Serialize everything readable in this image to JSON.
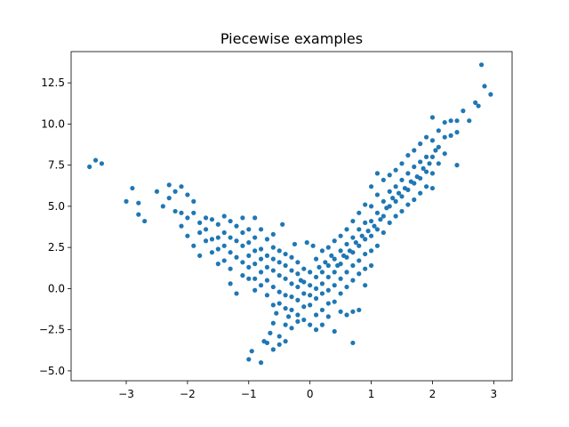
{
  "chart_data": {
    "type": "scatter",
    "title": "Piecewise examples",
    "xlabel": "",
    "ylabel": "",
    "xlim": [
      -3.9,
      3.3
    ],
    "ylim": [
      -5.6,
      14.4
    ],
    "x_ticks": [
      -3,
      -2,
      -1,
      0,
      1,
      2,
      3
    ],
    "x_tick_labels": [
      "−3",
      "−2",
      "−1",
      "0",
      "1",
      "2",
      "3"
    ],
    "y_ticks": [
      -5.0,
      -2.5,
      0.0,
      2.5,
      5.0,
      7.5,
      10.0,
      12.5
    ],
    "y_tick_labels": [
      "−5.0",
      "−2.5",
      "0.0",
      "2.5",
      "5.0",
      "7.5",
      "10.0",
      "12.5"
    ],
    "grid": false,
    "series": [
      {
        "color": "#1f77b4",
        "marker": "circle",
        "points": [
          [
            -3.6,
            7.4
          ],
          [
            -3.5,
            7.8
          ],
          [
            -3.4,
            7.6
          ],
          [
            -3.0,
            5.3
          ],
          [
            -2.9,
            6.1
          ],
          [
            -2.8,
            5.2
          ],
          [
            -2.8,
            4.5
          ],
          [
            -2.7,
            4.1
          ],
          [
            -2.5,
            5.9
          ],
          [
            -2.4,
            5.0
          ],
          [
            -2.3,
            6.3
          ],
          [
            -2.3,
            5.5
          ],
          [
            -2.2,
            4.7
          ],
          [
            -2.2,
            5.9
          ],
          [
            -2.1,
            6.2
          ],
          [
            -2.1,
            4.6
          ],
          [
            -2.1,
            3.8
          ],
          [
            -2.0,
            5.7
          ],
          [
            -2.0,
            4.3
          ],
          [
            -2.0,
            3.2
          ],
          [
            -1.9,
            5.3
          ],
          [
            -1.9,
            4.6
          ],
          [
            -1.9,
            2.6
          ],
          [
            -1.8,
            4.0
          ],
          [
            -1.8,
            3.4
          ],
          [
            -1.8,
            2.0
          ],
          [
            -1.7,
            4.3
          ],
          [
            -1.7,
            3.6
          ],
          [
            -1.7,
            2.9
          ],
          [
            -1.6,
            4.2
          ],
          [
            -1.6,
            3.0
          ],
          [
            -1.6,
            2.2
          ],
          [
            -1.5,
            3.9
          ],
          [
            -1.5,
            3.1
          ],
          [
            -1.5,
            2.4
          ],
          [
            -1.5,
            1.5
          ],
          [
            -1.4,
            4.4
          ],
          [
            -1.4,
            3.4
          ],
          [
            -1.4,
            2.6
          ],
          [
            -1.4,
            1.7
          ],
          [
            -1.3,
            4.1
          ],
          [
            -1.3,
            3.1
          ],
          [
            -1.3,
            2.2
          ],
          [
            -1.3,
            1.2
          ],
          [
            -1.3,
            0.3
          ],
          [
            -1.2,
            3.8
          ],
          [
            -1.2,
            2.9
          ],
          [
            -1.2,
            1.9
          ],
          [
            -1.2,
            -0.3
          ],
          [
            -1.1,
            4.3
          ],
          [
            -1.1,
            3.4
          ],
          [
            -1.1,
            2.6
          ],
          [
            -1.1,
            1.6
          ],
          [
            -1.1,
            0.8
          ],
          [
            -1.0,
            3.6
          ],
          [
            -1.0,
            2.8
          ],
          [
            -1.0,
            2.0
          ],
          [
            -1.0,
            1.3
          ],
          [
            -1.0,
            0.6
          ],
          [
            -1.0,
            -4.3
          ],
          [
            -0.95,
            -3.8
          ],
          [
            -0.9,
            4.3
          ],
          [
            -0.9,
            3.1
          ],
          [
            -0.9,
            2.3
          ],
          [
            -0.9,
            1.5
          ],
          [
            -0.9,
            0.6
          ],
          [
            -0.9,
            -0.1
          ],
          [
            -0.8,
            3.6
          ],
          [
            -0.8,
            2.4
          ],
          [
            -0.8,
            1.8
          ],
          [
            -0.8,
            1.0
          ],
          [
            -0.8,
            0.2
          ],
          [
            -0.8,
            -4.5
          ],
          [
            -0.75,
            -3.2
          ],
          [
            -0.7,
            3.0
          ],
          [
            -0.7,
            2.0
          ],
          [
            -0.7,
            1.3
          ],
          [
            -0.7,
            0.5
          ],
          [
            -0.7,
            -0.4
          ],
          [
            -0.7,
            -3.3
          ],
          [
            -0.65,
            -2.7
          ],
          [
            -0.6,
            3.3
          ],
          [
            -0.6,
            2.5
          ],
          [
            -0.6,
            1.8
          ],
          [
            -0.6,
            1.1
          ],
          [
            -0.6,
            0.1
          ],
          [
            -0.6,
            -1.0
          ],
          [
            -0.6,
            -2.1
          ],
          [
            -0.6,
            -3.7
          ],
          [
            -0.55,
            -1.5
          ],
          [
            -0.5,
            2.3
          ],
          [
            -0.5,
            1.6
          ],
          [
            -0.5,
            0.8
          ],
          [
            -0.5,
            -0.2
          ],
          [
            -0.5,
            -0.9
          ],
          [
            -0.5,
            -2.9
          ],
          [
            -0.5,
            -3.4
          ],
          [
            -0.45,
            3.9
          ],
          [
            -0.4,
            2.1
          ],
          [
            -0.4,
            1.4
          ],
          [
            -0.4,
            0.6
          ],
          [
            -0.4,
            -0.4
          ],
          [
            -0.4,
            -1.2
          ],
          [
            -0.4,
            -2.2
          ],
          [
            -0.4,
            -3.2
          ],
          [
            -0.35,
            -1.7
          ],
          [
            -0.3,
            1.9
          ],
          [
            -0.3,
            1.1
          ],
          [
            -0.3,
            0.3
          ],
          [
            -0.3,
            -0.5
          ],
          [
            -0.3,
            -1.3
          ],
          [
            -0.3,
            -2.4
          ],
          [
            -0.25,
            2.7
          ],
          [
            -0.2,
            1.6
          ],
          [
            -0.2,
            0.9
          ],
          [
            -0.2,
            0.1
          ],
          [
            -0.2,
            -0.7
          ],
          [
            -0.2,
            -1.6
          ],
          [
            -0.2,
            -2.0
          ],
          [
            -0.15,
            0.5
          ],
          [
            -0.1,
            1.2
          ],
          [
            -0.1,
            0.4
          ],
          [
            -0.1,
            -0.3
          ],
          [
            -0.1,
            -1.1
          ],
          [
            -0.1,
            -1.9
          ],
          [
            -0.05,
            2.8
          ],
          [
            0.0,
            1.0
          ],
          [
            0.0,
            0.2
          ],
          [
            0.0,
            -0.4
          ],
          [
            0.0,
            -1.0
          ],
          [
            0.0,
            -2.2
          ],
          [
            0.05,
            2.6
          ],
          [
            0.1,
            1.8
          ],
          [
            0.1,
            0.7
          ],
          [
            0.1,
            0.0
          ],
          [
            0.1,
            -0.6
          ],
          [
            0.1,
            -1.6
          ],
          [
            0.1,
            -2.5
          ],
          [
            0.15,
            1.3
          ],
          [
            0.2,
            2.3
          ],
          [
            0.2,
            1.0
          ],
          [
            0.2,
            0.3
          ],
          [
            0.2,
            -0.3
          ],
          [
            0.2,
            -1.3
          ],
          [
            0.2,
            -2.2
          ],
          [
            0.25,
            1.6
          ],
          [
            0.3,
            2.5
          ],
          [
            0.3,
            1.4
          ],
          [
            0.3,
            0.7
          ],
          [
            0.3,
            -0.1
          ],
          [
            0.3,
            -0.9
          ],
          [
            0.3,
            -1.7
          ],
          [
            0.35,
            2.0
          ],
          [
            0.4,
            2.9
          ],
          [
            0.4,
            1.8
          ],
          [
            0.4,
            1.0
          ],
          [
            0.4,
            0.2
          ],
          [
            0.4,
            -0.8
          ],
          [
            0.4,
            -2.6
          ],
          [
            0.45,
            1.4
          ],
          [
            0.5,
            3.2
          ],
          [
            0.5,
            2.3
          ],
          [
            0.5,
            1.5
          ],
          [
            0.5,
            0.6
          ],
          [
            0.5,
            -0.3
          ],
          [
            0.5,
            -1.4
          ],
          [
            0.55,
            2.0
          ],
          [
            0.6,
            3.6
          ],
          [
            0.6,
            2.7
          ],
          [
            0.6,
            1.9
          ],
          [
            0.6,
            1.0
          ],
          [
            0.6,
            0.1
          ],
          [
            0.6,
            -1.6
          ],
          [
            0.65,
            2.3
          ],
          [
            0.7,
            4.1
          ],
          [
            0.7,
            3.1
          ],
          [
            0.7,
            2.2
          ],
          [
            0.7,
            1.4
          ],
          [
            0.7,
            0.5
          ],
          [
            0.7,
            -1.4
          ],
          [
            0.7,
            -3.3
          ],
          [
            0.75,
            2.8
          ],
          [
            0.8,
            4.6
          ],
          [
            0.8,
            3.6
          ],
          [
            0.8,
            2.6
          ],
          [
            0.8,
            1.7
          ],
          [
            0.8,
            0.9
          ],
          [
            0.8,
            -1.3
          ],
          [
            0.85,
            3.2
          ],
          [
            0.9,
            5.1
          ],
          [
            0.9,
            4.0
          ],
          [
            0.9,
            3.0
          ],
          [
            0.9,
            2.1
          ],
          [
            0.9,
            1.2
          ],
          [
            0.9,
            0.2
          ],
          [
            0.95,
            3.5
          ],
          [
            1.0,
            6.2
          ],
          [
            1.0,
            5.0
          ],
          [
            1.0,
            4.1
          ],
          [
            1.0,
            3.2
          ],
          [
            1.0,
            2.3
          ],
          [
            1.0,
            1.4
          ],
          [
            1.05,
            3.8
          ],
          [
            1.1,
            7.0
          ],
          [
            1.1,
            5.7
          ],
          [
            1.1,
            4.6
          ],
          [
            1.1,
            3.6
          ],
          [
            1.1,
            2.6
          ],
          [
            1.15,
            4.2
          ],
          [
            1.2,
            6.6
          ],
          [
            1.2,
            5.3
          ],
          [
            1.2,
            4.4
          ],
          [
            1.2,
            3.4
          ],
          [
            1.25,
            4.9
          ],
          [
            1.3,
            6.9
          ],
          [
            1.3,
            5.9
          ],
          [
            1.3,
            5.0
          ],
          [
            1.3,
            4.0
          ],
          [
            1.35,
            5.5
          ],
          [
            1.4,
            7.2
          ],
          [
            1.4,
            6.2
          ],
          [
            1.4,
            5.3
          ],
          [
            1.4,
            4.4
          ],
          [
            1.45,
            5.8
          ],
          [
            1.5,
            7.6
          ],
          [
            1.5,
            6.6
          ],
          [
            1.5,
            5.6
          ],
          [
            1.5,
            4.7
          ],
          [
            1.55,
            6.1
          ],
          [
            1.6,
            8.1
          ],
          [
            1.6,
            7.0
          ],
          [
            1.6,
            6.0
          ],
          [
            1.6,
            5.1
          ],
          [
            1.65,
            6.5
          ],
          [
            1.7,
            8.4
          ],
          [
            1.7,
            7.4
          ],
          [
            1.7,
            6.4
          ],
          [
            1.7,
            5.4
          ],
          [
            1.75,
            6.8
          ],
          [
            1.8,
            8.8
          ],
          [
            1.8,
            7.7
          ],
          [
            1.8,
            6.7
          ],
          [
            1.8,
            5.8
          ],
          [
            1.85,
            7.3
          ],
          [
            1.9,
            9.2
          ],
          [
            1.9,
            8.0
          ],
          [
            1.9,
            7.1
          ],
          [
            1.9,
            6.2
          ],
          [
            1.95,
            7.6
          ],
          [
            2.0,
            10.4
          ],
          [
            2.0,
            9.0
          ],
          [
            2.0,
            8.0
          ],
          [
            2.0,
            7.0
          ],
          [
            2.0,
            6.1
          ],
          [
            2.05,
            8.4
          ],
          [
            2.1,
            9.6
          ],
          [
            2.1,
            8.6
          ],
          [
            2.1,
            7.6
          ],
          [
            2.2,
            10.1
          ],
          [
            2.2,
            9.2
          ],
          [
            2.2,
            8.2
          ],
          [
            2.3,
            10.2
          ],
          [
            2.3,
            9.3
          ],
          [
            2.4,
            10.2
          ],
          [
            2.4,
            9.5
          ],
          [
            2.4,
            7.5
          ],
          [
            2.5,
            10.8
          ],
          [
            2.6,
            10.2
          ],
          [
            2.7,
            11.3
          ],
          [
            2.75,
            11.1
          ],
          [
            2.8,
            13.6
          ],
          [
            2.85,
            12.3
          ],
          [
            2.95,
            11.8
          ]
        ]
      }
    ]
  }
}
